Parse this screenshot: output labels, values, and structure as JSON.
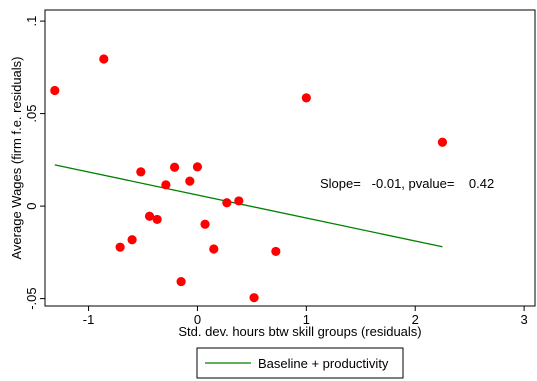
{
  "chart_data": {
    "type": "scatter",
    "xlabel": "Std. dev. hours btw skill groups (residuals)",
    "ylabel": "Average Wages (firm f.e. residuals)",
    "xlim": [
      -1.4,
      3.1
    ],
    "ylim": [
      -0.054,
      0.106
    ],
    "xticks": [
      -1,
      0,
      1,
      2,
      3
    ],
    "xtick_labels": [
      "-1",
      "0",
      "1",
      "2",
      "3"
    ],
    "yticks": [
      -0.05,
      0,
      0.05,
      0.1
    ],
    "ytick_labels": [
      "-.05",
      "0",
      ".05",
      ".1"
    ],
    "grid": false,
    "legend_position": "bottom",
    "point_color": "#ff0000",
    "line_color": "#008000",
    "annotation": "Slope=   -0.01, pvalue=    0.42",
    "series": [
      {
        "x": [
          -1.31,
          -0.86,
          -0.71,
          -0.6,
          -0.52,
          -0.44,
          -0.37,
          -0.29,
          -0.21,
          -0.15,
          -0.07,
          0.0,
          0.07,
          0.15,
          0.27,
          0.38,
          0.72,
          0.52,
          1.0,
          2.25
        ],
        "y": [
          0.0625,
          0.0795,
          -0.0222,
          -0.0182,
          0.0185,
          -0.0055,
          -0.0072,
          0.0115,
          0.021,
          -0.0408,
          0.0135,
          0.0212,
          -0.0098,
          -0.0232,
          0.0018,
          0.0028,
          -0.0245,
          -0.0495,
          0.0585,
          0.0345
        ]
      },
      {
        "name": "Baseline + productivity",
        "type": "line",
        "x": [
          -1.31,
          2.25
        ],
        "y": [
          0.0223,
          -0.022
        ]
      }
    ]
  }
}
